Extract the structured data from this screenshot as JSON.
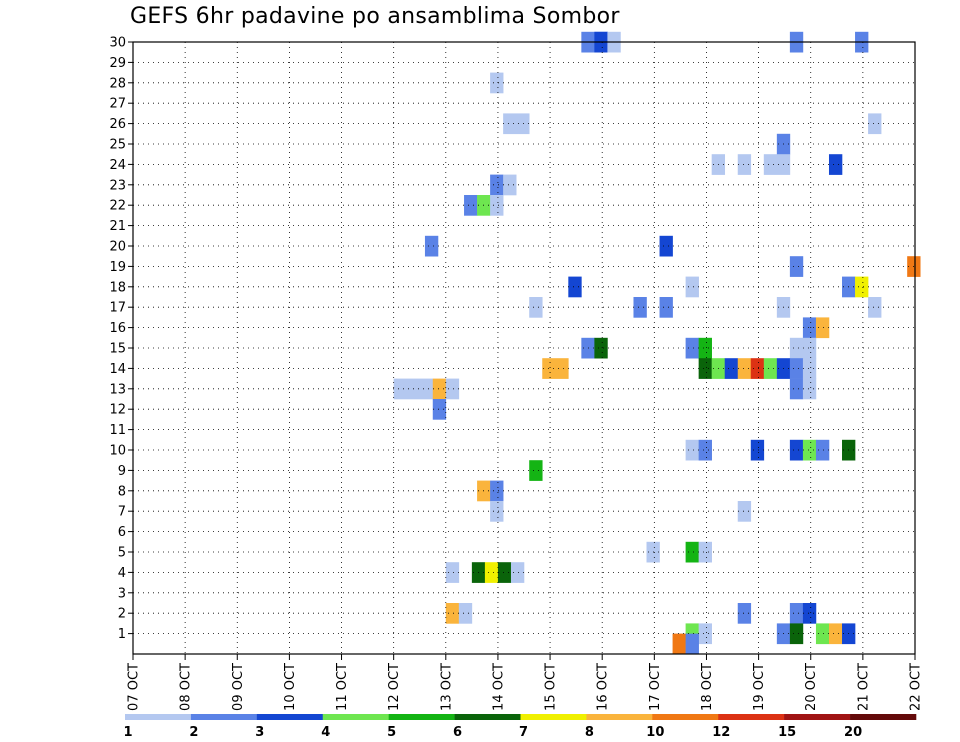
{
  "chart_data": {
    "type": "heatmap",
    "title": "GEFS 6hr padavine po ansamblima Sombor",
    "x_ticks": [
      "07 OCT",
      "08 OCT",
      "09 OCT",
      "10 OCT",
      "11 OCT",
      "12 OCT",
      "13 OCT",
      "14 OCT",
      "15 OCT",
      "16 OCT",
      "17 OCT",
      "18 OCT",
      "19 OCT",
      "20 OCT",
      "21 OCT",
      "22 OCT"
    ],
    "y_ticks": [
      "1",
      "2",
      "3",
      "4",
      "5",
      "6",
      "7",
      "8",
      "9",
      "10",
      "11",
      "12",
      "13",
      "14",
      "15",
      "16",
      "17",
      "18",
      "19",
      "20",
      "21",
      "22",
      "23",
      "24",
      "25",
      "26",
      "27",
      "28",
      "29",
      "30"
    ],
    "xlim": [
      "07 OCT",
      "22 OCT"
    ],
    "ylim": [
      0,
      30
    ],
    "grid": true,
    "colorbar": {
      "labels": [
        "1",
        "2",
        "3",
        "4",
        "5",
        "6",
        "7",
        "8",
        "10",
        "12",
        "15",
        "20"
      ],
      "colors": [
        "#b4c8f0",
        "#5a82e6",
        "#1446d2",
        "#6ee650",
        "#14b414",
        "#0a640a",
        "#f0f000",
        "#fab43c",
        "#f07814",
        "#dc3214",
        "#a01414",
        "#640a0a"
      ]
    },
    "cells": [
      {
        "member": 30,
        "day": 8.6,
        "span": 0.5,
        "level": 2
      },
      {
        "member": 30,
        "day": 8.85,
        "span": 0.25,
        "level": 3
      },
      {
        "member": 30,
        "day": 9.1,
        "span": 0.25,
        "level": 1
      },
      {
        "member": 30,
        "day": 12.6,
        "span": 0.25,
        "level": 2
      },
      {
        "member": 30,
        "day": 13.85,
        "span": 0.25,
        "level": 2
      },
      {
        "member": 28,
        "day": 6.85,
        "span": 0.25,
        "level": 1
      },
      {
        "member": 26,
        "day": 7.1,
        "span": 0.5,
        "level": 1
      },
      {
        "member": 26,
        "day": 14.1,
        "span": 0.25,
        "level": 1
      },
      {
        "member": 25,
        "day": 12.35,
        "span": 0.25,
        "level": 2
      },
      {
        "member": 24,
        "day": 11.1,
        "span": 0.25,
        "level": 1
      },
      {
        "member": 24,
        "day": 11.6,
        "span": 0.25,
        "level": 1
      },
      {
        "member": 24,
        "day": 12.1,
        "span": 0.5,
        "level": 1
      },
      {
        "member": 24,
        "day": 13.35,
        "span": 0.25,
        "level": 3
      },
      {
        "member": 23,
        "day": 6.85,
        "span": 0.25,
        "level": 2
      },
      {
        "member": 23,
        "day": 7.1,
        "span": 0.25,
        "level": 1
      },
      {
        "member": 22,
        "day": 6.35,
        "span": 0.25,
        "level": 2
      },
      {
        "member": 22,
        "day": 6.6,
        "span": 0.25,
        "level": 4
      },
      {
        "member": 22,
        "day": 6.85,
        "span": 0.25,
        "level": 1
      },
      {
        "member": 20,
        "day": 5.6,
        "span": 0.25,
        "level": 2
      },
      {
        "member": 20,
        "day": 10.1,
        "span": 0.25,
        "level": 3
      },
      {
        "member": 19,
        "day": 12.6,
        "span": 0.25,
        "level": 2
      },
      {
        "member": 19,
        "day": 14.85,
        "span": 0.25,
        "level": 9
      },
      {
        "member": 18,
        "day": 8.35,
        "span": 0.25,
        "level": 3
      },
      {
        "member": 18,
        "day": 10.6,
        "span": 0.25,
        "level": 1
      },
      {
        "member": 18,
        "day": 13.6,
        "span": 0.25,
        "level": 2
      },
      {
        "member": 18,
        "day": 13.85,
        "span": 0.25,
        "level": 7
      },
      {
        "member": 17,
        "day": 7.6,
        "span": 0.25,
        "level": 1
      },
      {
        "member": 17,
        "day": 9.6,
        "span": 0.25,
        "level": 2
      },
      {
        "member": 17,
        "day": 10.1,
        "span": 0.25,
        "level": 2
      },
      {
        "member": 17,
        "day": 12.35,
        "span": 0.25,
        "level": 1
      },
      {
        "member": 17,
        "day": 14.1,
        "span": 0.25,
        "level": 1
      },
      {
        "member": 16,
        "day": 12.85,
        "span": 0.25,
        "level": 2
      },
      {
        "member": 16,
        "day": 13.1,
        "span": 0.25,
        "level": 8
      },
      {
        "member": 15,
        "day": 8.6,
        "span": 0.25,
        "level": 2
      },
      {
        "member": 15,
        "day": 8.85,
        "span": 0.25,
        "level": 6
      },
      {
        "member": 15,
        "day": 10.6,
        "span": 0.25,
        "level": 2
      },
      {
        "member": 15,
        "day": 10.85,
        "span": 0.25,
        "level": 5
      },
      {
        "member": 15,
        "day": 12.6,
        "span": 0.5,
        "level": 1
      },
      {
        "member": 14,
        "day": 7.85,
        "span": 0.5,
        "level": 8
      },
      {
        "member": 14,
        "day": 10.85,
        "span": 0.25,
        "level": 6
      },
      {
        "member": 14,
        "day": 11.1,
        "span": 0.25,
        "level": 4
      },
      {
        "member": 14,
        "day": 11.35,
        "span": 0.25,
        "level": 3
      },
      {
        "member": 14,
        "day": 11.6,
        "span": 0.25,
        "level": 8
      },
      {
        "member": 14,
        "day": 11.85,
        "span": 0.25,
        "level": 10
      },
      {
        "member": 14,
        "day": 12.1,
        "span": 0.25,
        "level": 4
      },
      {
        "member": 14,
        "day": 12.35,
        "span": 0.25,
        "level": 3
      },
      {
        "member": 14,
        "day": 12.6,
        "span": 0.25,
        "level": 2
      },
      {
        "member": 14,
        "day": 12.85,
        "span": 0.25,
        "level": 1
      },
      {
        "member": 13,
        "day": 5.0,
        "span": 0.75,
        "level": 1
      },
      {
        "member": 13,
        "day": 5.75,
        "span": 0.25,
        "level": 8
      },
      {
        "member": 13,
        "day": 6.0,
        "span": 0.25,
        "level": 1
      },
      {
        "member": 13,
        "day": 12.6,
        "span": 0.25,
        "level": 2
      },
      {
        "member": 13,
        "day": 12.85,
        "span": 0.25,
        "level": 1
      },
      {
        "member": 12,
        "day": 5.75,
        "span": 0.25,
        "level": 2
      },
      {
        "member": 10,
        "day": 10.6,
        "span": 0.25,
        "level": 1
      },
      {
        "member": 10,
        "day": 10.85,
        "span": 0.25,
        "level": 2
      },
      {
        "member": 10,
        "day": 11.85,
        "span": 0.25,
        "level": 3
      },
      {
        "member": 10,
        "day": 12.6,
        "span": 0.25,
        "level": 3
      },
      {
        "member": 10,
        "day": 12.85,
        "span": 0.25,
        "level": 4
      },
      {
        "member": 10,
        "day": 13.1,
        "span": 0.25,
        "level": 2
      },
      {
        "member": 10,
        "day": 13.6,
        "span": 0.25,
        "level": 6
      },
      {
        "member": 9,
        "day": 7.6,
        "span": 0.25,
        "level": 5
      },
      {
        "member": 8,
        "day": 6.6,
        "span": 0.25,
        "level": 8
      },
      {
        "member": 8,
        "day": 6.85,
        "span": 0.25,
        "level": 2
      },
      {
        "member": 7,
        "day": 6.85,
        "span": 0.25,
        "level": 1
      },
      {
        "member": 7,
        "day": 11.6,
        "span": 0.25,
        "level": 1
      },
      {
        "member": 5,
        "day": 9.85,
        "span": 0.25,
        "level": 1
      },
      {
        "member": 5,
        "day": 10.6,
        "span": 0.25,
        "level": 5
      },
      {
        "member": 5,
        "day": 10.85,
        "span": 0.25,
        "level": 1
      },
      {
        "member": 4,
        "day": 6.0,
        "span": 0.25,
        "level": 1
      },
      {
        "member": 4,
        "day": 6.5,
        "span": 0.25,
        "level": 6
      },
      {
        "member": 4,
        "day": 6.75,
        "span": 0.25,
        "level": 7
      },
      {
        "member": 4,
        "day": 7.0,
        "span": 0.25,
        "level": 6
      },
      {
        "member": 4,
        "day": 7.25,
        "span": 0.25,
        "level": 1
      },
      {
        "member": 2,
        "day": 6.0,
        "span": 0.25,
        "level": 8
      },
      {
        "member": 2,
        "day": 6.25,
        "span": 0.25,
        "level": 1
      },
      {
        "member": 2,
        "day": 11.6,
        "span": 0.25,
        "level": 2
      },
      {
        "member": 2,
        "day": 12.6,
        "span": 0.25,
        "level": 2
      },
      {
        "member": 2,
        "day": 12.85,
        "span": 0.25,
        "level": 3
      },
      {
        "member": 1,
        "day": 10.6,
        "span": 0.25,
        "level": 4
      },
      {
        "member": 1,
        "day": 10.85,
        "span": 0.25,
        "level": 1
      },
      {
        "member": 1,
        "day": 12.35,
        "span": 0.25,
        "level": 2
      },
      {
        "member": 1,
        "day": 12.6,
        "span": 0.25,
        "level": 6
      },
      {
        "member": 1,
        "day": 13.1,
        "span": 0.25,
        "level": 4
      },
      {
        "member": 1,
        "day": 13.35,
        "span": 0.25,
        "level": 8
      },
      {
        "member": 1,
        "day": 13.6,
        "span": 0.25,
        "level": 3
      },
      {
        "member": 0.5,
        "day": 10.35,
        "span": 0.25,
        "level": 9
      },
      {
        "member": 0.5,
        "day": 10.6,
        "span": 0.25,
        "level": 2
      }
    ]
  }
}
